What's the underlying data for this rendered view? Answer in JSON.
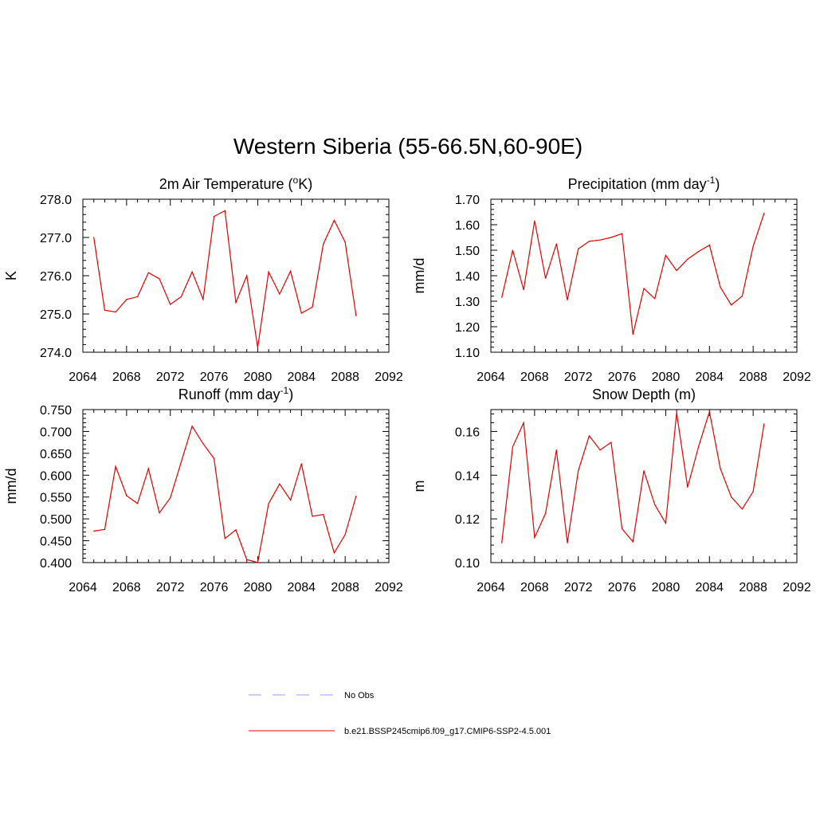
{
  "title": "Western Siberia (55-66.5N,60-90E)",
  "chart_data": [
    {
      "type": "line",
      "title": "2m Air Temperature (",
      "title_sup": "o",
      "title_after": "K)",
      "ylabel": "K",
      "xlim": [
        2064,
        2092
      ],
      "ylim": [
        274.0,
        278.0
      ],
      "xticks": [
        "2064",
        "2068",
        "2072",
        "2076",
        "2080",
        "2084",
        "2088",
        "2092"
      ],
      "yticks": [
        "274.0",
        "275.0",
        "276.0",
        "277.0",
        "278.0"
      ],
      "x": [
        2065,
        2066,
        2067,
        2068,
        2069,
        2070,
        2071,
        2072,
        2073,
        2074,
        2075,
        2076,
        2077,
        2078,
        2079,
        2080,
        2081,
        2082,
        2083,
        2084,
        2085,
        2086,
        2087,
        2088,
        2089
      ],
      "values": [
        277.0,
        275.1,
        275.05,
        275.38,
        275.45,
        276.08,
        275.92,
        275.25,
        275.45,
        276.1,
        275.38,
        277.55,
        277.7,
        275.3,
        276.0,
        274.12,
        276.1,
        275.52,
        276.12,
        275.02,
        275.18,
        276.82,
        277.45,
        276.88,
        274.95
      ]
    },
    {
      "type": "line",
      "title": "Precipitation (mm day",
      "title_sup": "-1",
      "title_after": ")",
      "ylabel": "mm/d",
      "xlim": [
        2064,
        2092
      ],
      "ylim": [
        1.1,
        1.7
      ],
      "xticks": [
        "2064",
        "2068",
        "2072",
        "2076",
        "2080",
        "2084",
        "2088",
        "2092"
      ],
      "yticks": [
        "1.10",
        "1.20",
        "1.30",
        "1.40",
        "1.50",
        "1.60",
        "1.70"
      ],
      "x": [
        2065,
        2066,
        2067,
        2068,
        2069,
        2070,
        2071,
        2072,
        2073,
        2074,
        2075,
        2076,
        2077,
        2078,
        2079,
        2080,
        2081,
        2082,
        2083,
        2084,
        2085,
        2086,
        2087,
        2088,
        2089
      ],
      "values": [
        1.315,
        1.5,
        1.345,
        1.615,
        1.39,
        1.525,
        1.305,
        1.505,
        1.535,
        1.54,
        1.55,
        1.565,
        1.17,
        1.35,
        1.31,
        1.48,
        1.42,
        1.465,
        1.495,
        1.52,
        1.355,
        1.285,
        1.32,
        1.515,
        1.645
      ]
    },
    {
      "type": "line",
      "title": "Runoff (mm day",
      "title_sup": "-1",
      "title_after": ")",
      "ylabel": "mm/d",
      "xlim": [
        2064,
        2092
      ],
      "ylim": [
        0.4,
        0.75
      ],
      "xticks": [
        "2064",
        "2068",
        "2072",
        "2076",
        "2080",
        "2084",
        "2088",
        "2092"
      ],
      "yticks": [
        "0.400",
        "0.450",
        "0.500",
        "0.550",
        "0.600",
        "0.650",
        "0.700",
        "0.750"
      ],
      "x": [
        2065,
        2066,
        2067,
        2068,
        2069,
        2070,
        2071,
        2072,
        2073,
        2074,
        2075,
        2076,
        2077,
        2078,
        2079,
        2080,
        2081,
        2082,
        2083,
        2084,
        2085,
        2086,
        2087,
        2088,
        2089
      ],
      "values": [
        0.472,
        0.476,
        0.62,
        0.553,
        0.535,
        0.615,
        0.514,
        0.548,
        0.63,
        0.712,
        0.672,
        0.638,
        0.455,
        0.475,
        0.407,
        0.4,
        0.535,
        0.58,
        0.543,
        0.626,
        0.506,
        0.51,
        0.422,
        0.464,
        0.552
      ]
    },
    {
      "type": "line",
      "title": "Snow Depth (m)",
      "title_sup": "",
      "title_after": "",
      "ylabel": "m",
      "xlim": [
        2064,
        2092
      ],
      "ylim": [
        0.1,
        0.17
      ],
      "xticks": [
        "2064",
        "2068",
        "2072",
        "2076",
        "2080",
        "2084",
        "2088",
        "2092"
      ],
      "yticks": [
        "0.10",
        "0.12",
        "0.14",
        "0.16"
      ],
      "x": [
        2065,
        2066,
        2067,
        2068,
        2069,
        2070,
        2071,
        2072,
        2073,
        2074,
        2075,
        2076,
        2077,
        2078,
        2079,
        2080,
        2081,
        2082,
        2083,
        2084,
        2085,
        2086,
        2087,
        2088,
        2089
      ],
      "values": [
        0.109,
        0.153,
        0.164,
        0.1115,
        0.1225,
        0.1515,
        0.109,
        0.142,
        0.158,
        0.1515,
        0.155,
        0.1155,
        0.1095,
        0.142,
        0.1265,
        0.118,
        0.1685,
        0.1345,
        0.153,
        0.169,
        0.143,
        0.13,
        0.1245,
        0.1325,
        0.1635
      ]
    }
  ],
  "legend": [
    {
      "label": "No Obs",
      "color": "#9999ff",
      "dash": true
    },
    {
      "label": "b.e21.BSSP245cmip6.f09_g17.CMIP6-SSP2-4.5.001",
      "color": "#ff0000",
      "dash": false
    }
  ],
  "colors": {
    "series": "#e00000",
    "axis": "#000000"
  }
}
